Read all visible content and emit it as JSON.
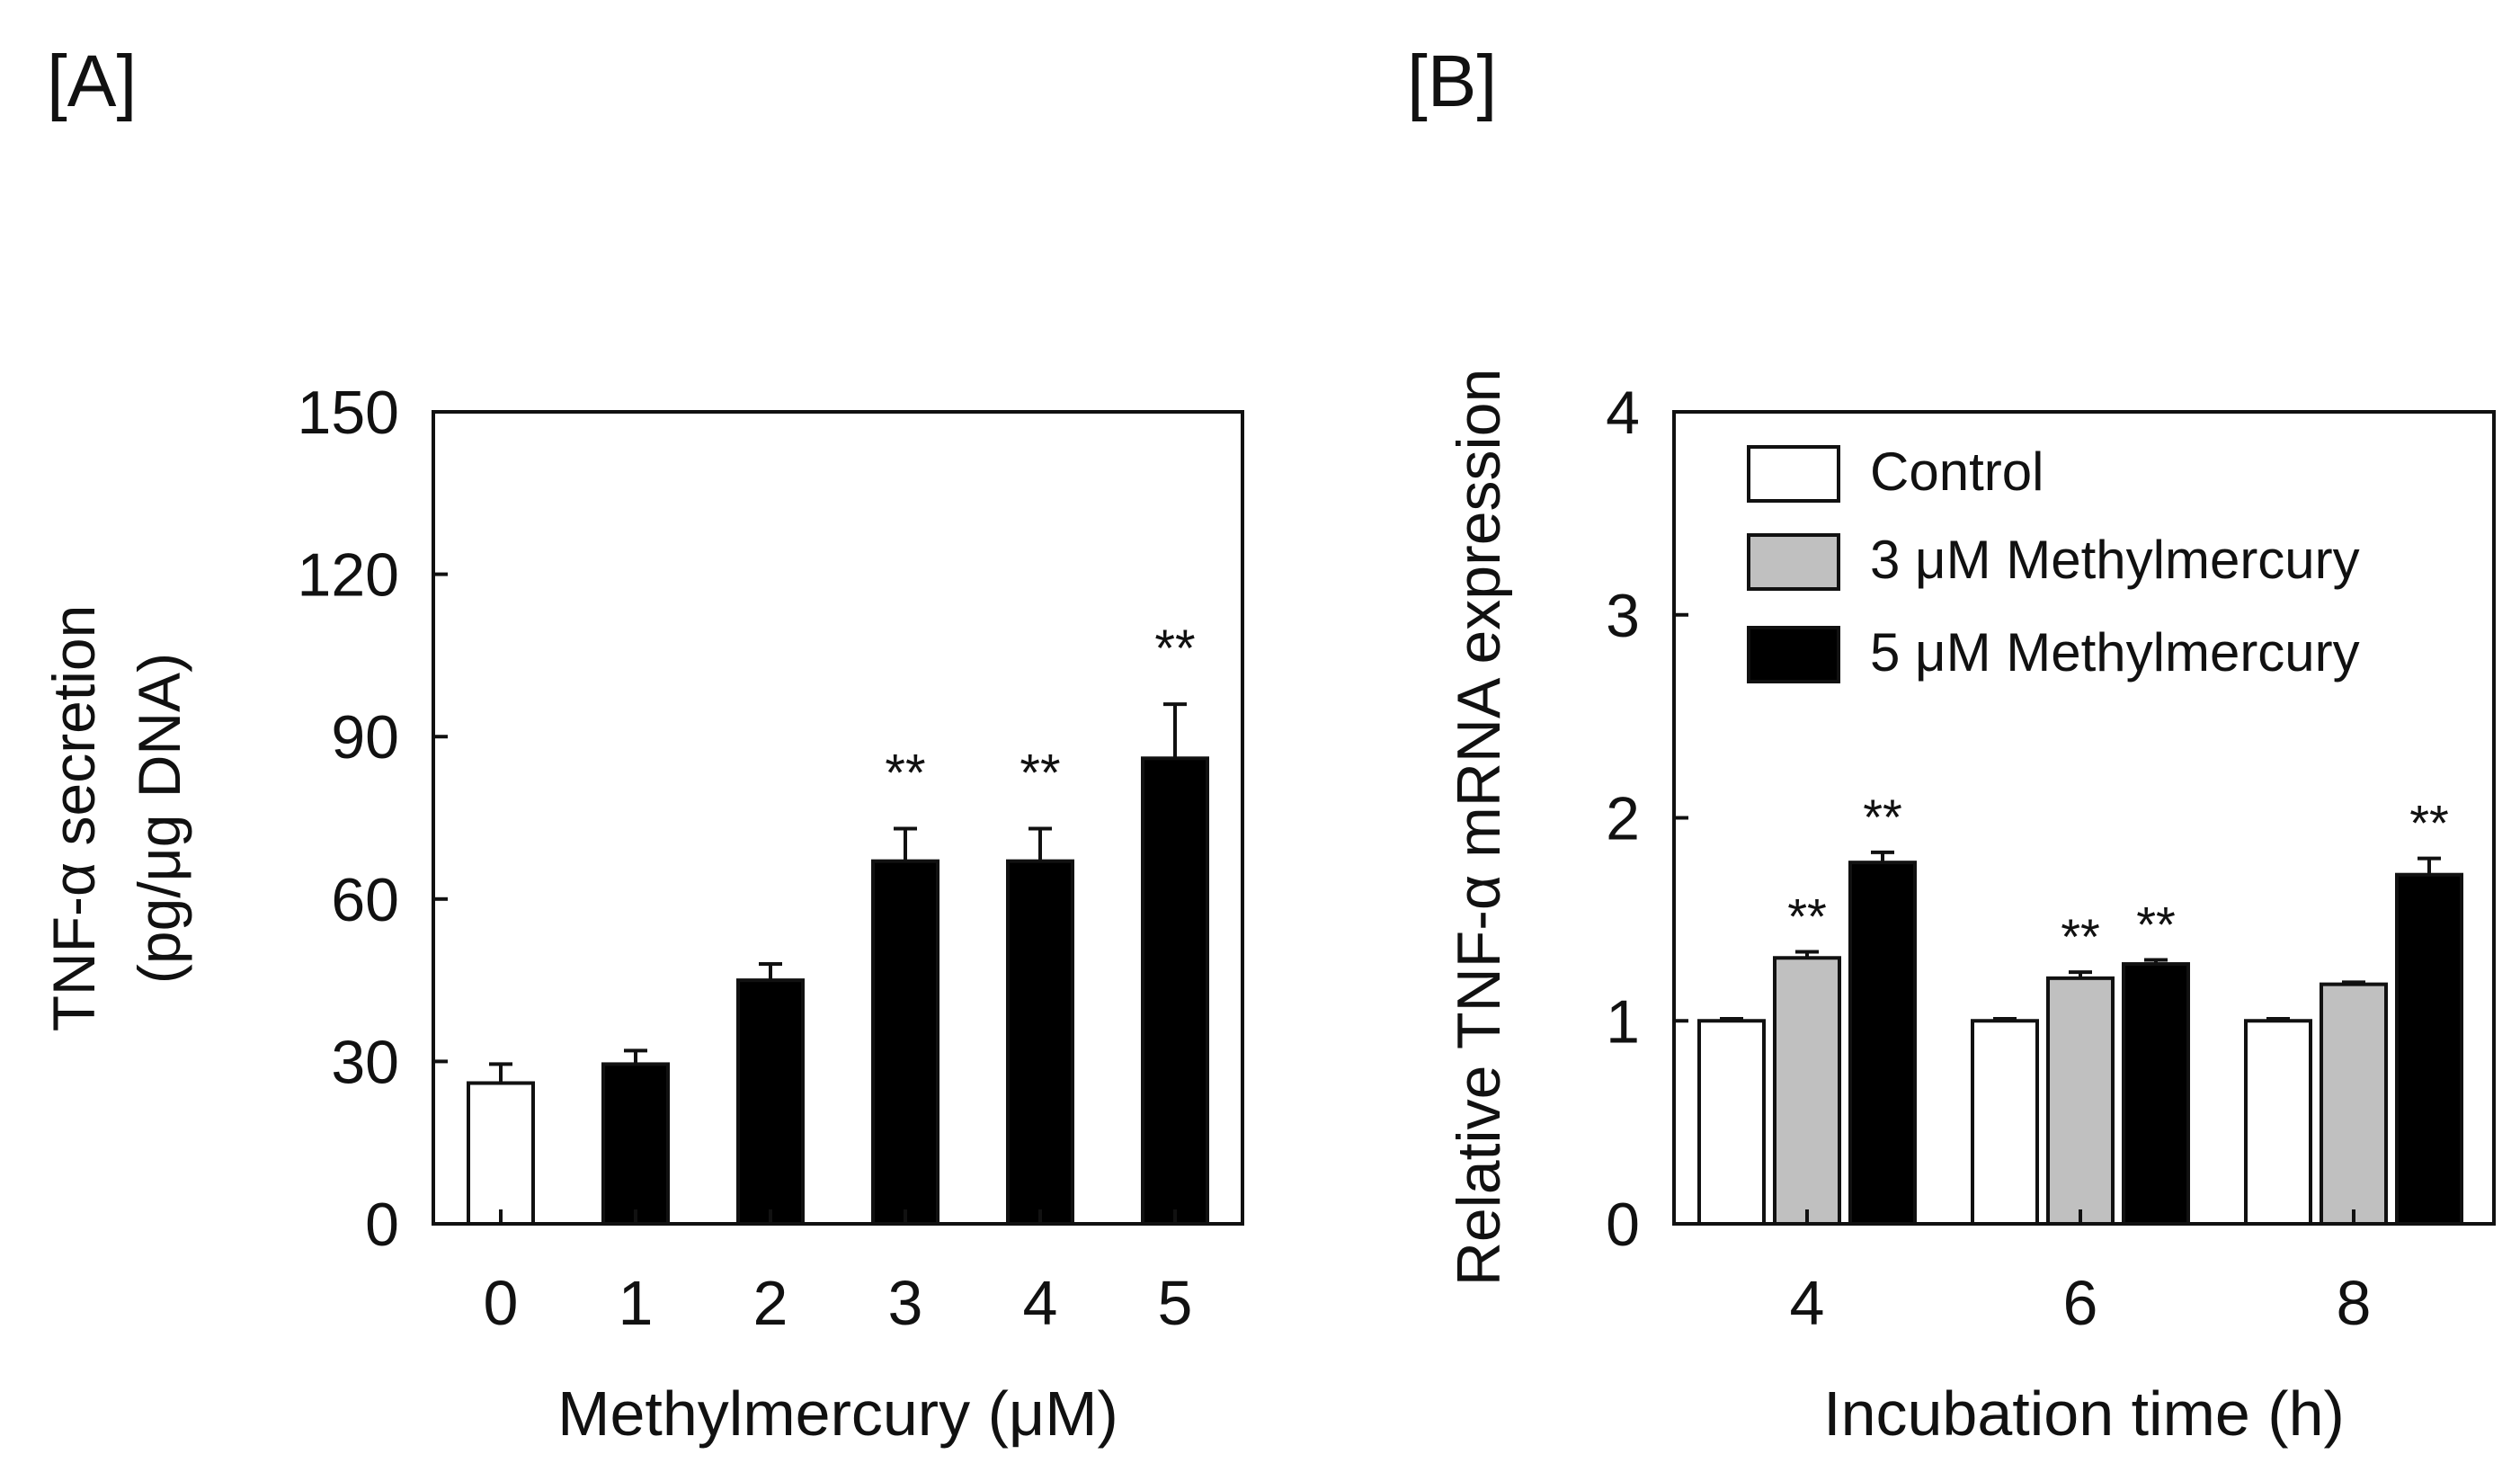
{
  "chart_data": [
    {
      "panel": "[A]",
      "type": "bar",
      "xlabel": "Methylmercury (μM)",
      "ylabel_line1": "TNF-α secretion",
      "ylabel_line2": "(pg/μg DNA)",
      "ylim": [
        0,
        150
      ],
      "yticks": [
        "0",
        "30",
        "60",
        "90",
        "120",
        "150"
      ],
      "categories": [
        "0",
        "1",
        "2",
        "3",
        "4",
        "5"
      ],
      "values": [
        26,
        29.5,
        45,
        67,
        67,
        86
      ],
      "errors": [
        3.5,
        2.5,
        3,
        6,
        6,
        10
      ],
      "fills": [
        "#ffffff",
        "#000000",
        "#000000",
        "#000000",
        "#000000",
        "#000000"
      ],
      "significance": [
        "",
        "",
        "",
        "**",
        "**",
        "**"
      ]
    },
    {
      "panel": "[B]",
      "type": "bar",
      "xlabel": "Incubation time (h)",
      "ylabel": "Relative TNF-α mRNA expression",
      "ylim": [
        0,
        4
      ],
      "yticks": [
        "0",
        "1",
        "2",
        "3",
        "4"
      ],
      "categories": [
        "4",
        "6",
        "8"
      ],
      "legend_position": "top-left",
      "series": [
        {
          "name": "Control",
          "color": "#ffffff",
          "values": [
            1.0,
            1.0,
            1.0
          ],
          "errors": [
            0.01,
            0.01,
            0.01
          ],
          "significance": [
            "",
            "",
            ""
          ]
        },
        {
          "name": "3 μM Methylmercury",
          "color": "#c0c0c0",
          "values": [
            1.31,
            1.21,
            1.18
          ],
          "errors": [
            0.03,
            0.03,
            0.01
          ],
          "significance": [
            "**",
            "**",
            ""
          ]
        },
        {
          "name": "5 μM Methylmercury",
          "color": "#000000",
          "values": [
            1.78,
            1.28,
            1.72
          ],
          "errors": [
            0.05,
            0.02,
            0.08
          ],
          "significance": [
            "**",
            "**",
            "**"
          ]
        }
      ]
    }
  ]
}
